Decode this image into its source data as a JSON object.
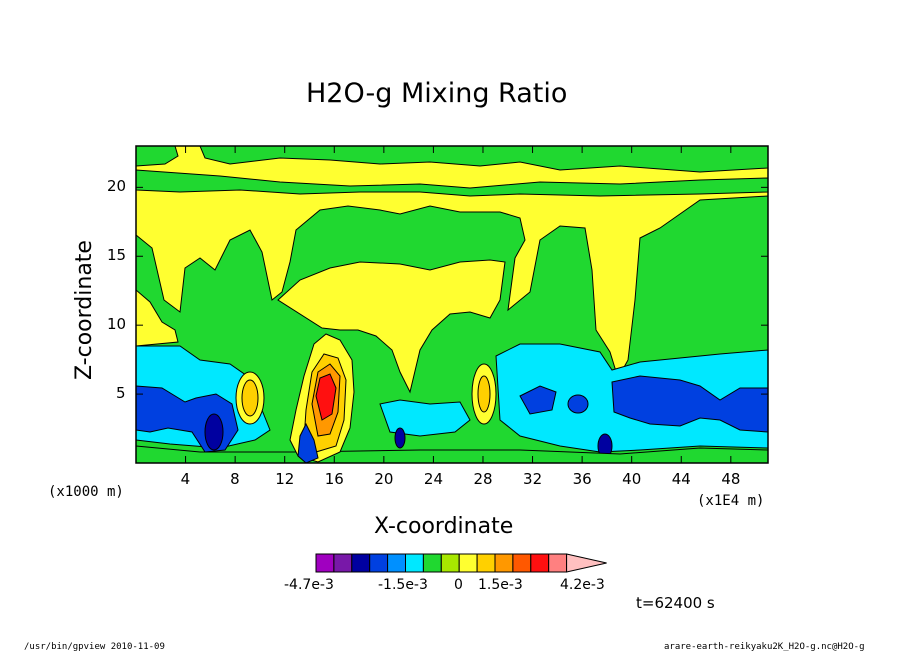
{
  "chart_data": {
    "type": "heatmap",
    "title": "H2O-g Mixing Ratio",
    "xlabel": "X-coordinate",
    "ylabel": "Z-coordinate",
    "x_unit_left": "(x1000 m)",
    "x_unit_right": "(x1E4 m)",
    "xlim": [
      0,
      51
    ],
    "ylim": [
      0,
      23
    ],
    "x_ticks": [
      4,
      8,
      12,
      16,
      20,
      24,
      28,
      32,
      36,
      40,
      44,
      48
    ],
    "y_ticks": [
      5,
      10,
      15,
      20
    ],
    "colorbar": {
      "colors": [
        "#a000c0",
        "#7818a8",
        "#0000a0",
        "#0040e0",
        "#0090ff",
        "#00e8ff",
        "#20d830",
        "#a8e800",
        "#ffff30",
        "#ffd000",
        "#ff9800",
        "#ff5800",
        "#ff1010",
        "#ff8080",
        "#ffc0c0"
      ],
      "labels": [
        "-4.7e-3",
        "-1.5e-3",
        "0",
        "1.5e-3",
        "4.2e-3"
      ]
    },
    "time_label": "t=62400 s",
    "footer_left": "/usr/bin/gpview  2010-11-09",
    "footer_right": "arare-earth-reikyaku2K_H2O-g.nc@H2O-g"
  }
}
